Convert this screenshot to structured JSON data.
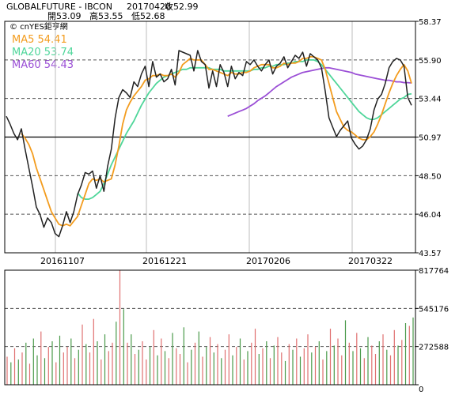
{
  "header": {
    "symbol": "GLOBALFUTURE - IBCON",
    "date": "20170420",
    "close_label": "收52.99",
    "open_label": "開53.09",
    "high_label": "高53.55",
    "low_label": "低52.68"
  },
  "watermark": "cnYES鉅亨網",
  "legend": {
    "ma5": "MA5 54.41",
    "ma20": "MA20 53.74",
    "ma60": "MA60 54.43"
  },
  "colors": {
    "price": "#222222",
    "ma5": "#f39c1e",
    "ma20": "#4fd69a",
    "ma60": "#9b4fd6",
    "vol_up": "#e07070",
    "vol_down": "#4a9a4a",
    "grid": "#888888"
  },
  "chart_data": [
    {
      "type": "line",
      "title": "",
      "x_ticks": [
        "20161107",
        "20161221",
        "20170206",
        "20170322"
      ],
      "y_ticks": [
        58.37,
        55.9,
        53.44,
        50.97,
        48.5,
        46.04,
        43.57
      ],
      "ylim": [
        43.57,
        58.37
      ],
      "grid": true,
      "legend_position": "top-left",
      "series": [
        {
          "name": "price",
          "values": [
            52.3,
            51.8,
            51.2,
            50.8,
            51.5,
            50.2,
            49.0,
            47.8,
            46.5,
            46.0,
            45.2,
            45.8,
            45.5,
            44.8,
            44.6,
            45.3,
            46.2,
            45.5,
            46.2,
            47.3,
            47.9,
            48.7,
            48.6,
            48.8,
            47.7,
            48.5,
            47.5,
            49.1,
            50.2,
            52.2,
            53.5,
            54.0,
            53.8,
            53.5,
            54.5,
            54.2,
            55.0,
            55.5,
            54.2,
            55.8,
            54.8,
            55.0,
            54.5,
            54.7,
            55.3,
            54.3,
            56.5,
            56.4,
            56.3,
            56.2,
            55.2,
            56.5,
            55.8,
            55.6,
            54.1,
            55.2,
            54.2,
            55.6,
            55.1,
            54.2,
            55.5,
            54.7,
            55.1,
            54.9,
            55.8,
            55.6,
            55.9,
            55.5,
            55.2,
            55.6,
            55.9,
            55.0,
            55.5,
            55.7,
            56.1,
            55.4,
            55.8,
            56.2,
            56.0,
            56.4,
            55.5,
            56.3,
            56.1,
            55.9,
            55.4,
            53.9,
            52.2,
            51.6,
            51.0,
            51.4,
            51.7,
            52.0,
            50.9,
            50.5,
            50.2,
            50.4,
            50.8,
            51.5,
            52.7,
            53.4,
            53.7,
            54.4,
            55.4,
            55.8,
            56.0,
            55.9,
            55.5,
            53.5,
            53.0
          ],
          "color": "#222222"
        },
        {
          "name": "MA5",
          "values": [
            null,
            null,
            null,
            null,
            51.2,
            50.9,
            50.5,
            49.9,
            49.0,
            48.3,
            47.6,
            46.9,
            46.2,
            45.8,
            45.4,
            45.3,
            45.4,
            45.3,
            45.6,
            45.9,
            46.6,
            47.3,
            48.0,
            48.3,
            48.2,
            48.3,
            48.1,
            48.2,
            48.3,
            49.2,
            50.4,
            51.8,
            52.7,
            53.2,
            53.6,
            53.9,
            54.2,
            54.6,
            54.7,
            54.9,
            54.9,
            55.0,
            54.9,
            54.9,
            55.0,
            54.8,
            55.1,
            55.6,
            55.8,
            56.0,
            55.9,
            55.9,
            55.9,
            55.6,
            55.3,
            55.3,
            55.2,
            55.1,
            55.0,
            54.9,
            55.1,
            55.0,
            55.0,
            55.1,
            55.1,
            55.2,
            55.4,
            55.5,
            55.6,
            55.6,
            55.6,
            55.4,
            55.4,
            55.5,
            55.7,
            55.6,
            55.7,
            55.7,
            55.8,
            56.0,
            56.0,
            56.1,
            56.1,
            56.0,
            55.9,
            55.3,
            54.4,
            53.5,
            52.6,
            52.1,
            51.6,
            51.4,
            51.3,
            51.1,
            50.9,
            50.8,
            50.8,
            51.0,
            51.3,
            51.8,
            52.4,
            53.1,
            53.8,
            54.4,
            54.9,
            55.3,
            55.6,
            55.2,
            54.4
          ],
          "color": "#f39c1e"
        },
        {
          "name": "MA20",
          "values": [
            null,
            null,
            null,
            null,
            null,
            null,
            null,
            null,
            null,
            null,
            null,
            null,
            null,
            null,
            null,
            null,
            null,
            null,
            null,
            47.4,
            47.1,
            47.0,
            47.0,
            47.1,
            47.3,
            47.5,
            48.0,
            48.6,
            49.2,
            49.7,
            50.2,
            50.7,
            51.2,
            51.6,
            52.0,
            52.5,
            53.0,
            53.4,
            53.8,
            54.1,
            54.4,
            54.6,
            54.8,
            54.9,
            55.0,
            55.1,
            55.2,
            55.3,
            55.3,
            55.4,
            55.4,
            55.4,
            55.4,
            55.4,
            55.4,
            55.3,
            55.3,
            55.3,
            55.2,
            55.2,
            55.2,
            55.2,
            55.2,
            55.2,
            55.2,
            55.2,
            55.3,
            55.3,
            55.4,
            55.4,
            55.5,
            55.5,
            55.6,
            55.6,
            55.6,
            55.7,
            55.7,
            55.8,
            55.8,
            55.8,
            55.9,
            55.9,
            55.9,
            55.8,
            55.6,
            55.3,
            55.0,
            54.7,
            54.4,
            54.1,
            53.8,
            53.5,
            53.2,
            52.9,
            52.6,
            52.4,
            52.2,
            52.1,
            52.1,
            52.2,
            52.4,
            52.6,
            52.8,
            53.0,
            53.2,
            53.4,
            53.5,
            53.7,
            53.74
          ],
          "color": "#4fd69a"
        },
        {
          "name": "MA60",
          "values": [
            null,
            null,
            null,
            null,
            null,
            null,
            null,
            null,
            null,
            null,
            null,
            null,
            null,
            null,
            null,
            null,
            null,
            null,
            null,
            null,
            null,
            null,
            null,
            null,
            null,
            null,
            null,
            null,
            null,
            null,
            null,
            null,
            null,
            null,
            null,
            null,
            null,
            null,
            null,
            null,
            null,
            null,
            null,
            null,
            null,
            null,
            null,
            null,
            null,
            null,
            null,
            null,
            null,
            null,
            null,
            null,
            null,
            null,
            null,
            52.3,
            52.4,
            52.5,
            52.6,
            52.7,
            52.8,
            52.95,
            53.1,
            53.3,
            53.45,
            53.6,
            53.8,
            54.0,
            54.2,
            54.35,
            54.5,
            54.65,
            54.8,
            54.9,
            55.0,
            55.1,
            55.15,
            55.2,
            55.25,
            55.3,
            55.35,
            55.4,
            55.4,
            55.35,
            55.3,
            55.25,
            55.2,
            55.15,
            55.1,
            55.0,
            54.95,
            54.9,
            54.85,
            54.8,
            54.75,
            54.7,
            54.65,
            54.6,
            54.6,
            54.55,
            54.5,
            54.5,
            54.45,
            54.45,
            54.43
          ],
          "color": "#9b4fd6"
        }
      ]
    },
    {
      "type": "bar",
      "title": "",
      "y_ticks": [
        817764,
        545176,
        272588,
        0
      ],
      "ylim": [
        0,
        817764
      ],
      "grid": true,
      "series": [
        {
          "name": "volume",
          "values": [
            200000,
            160000,
            260000,
            180000,
            230000,
            300000,
            150000,
            330000,
            210000,
            380000,
            190000,
            270000,
            310000,
            160000,
            350000,
            230000,
            270000,
            330000,
            190000,
            250000,
            430000,
            290000,
            230000,
            470000,
            310000,
            180000,
            360000,
            240000,
            300000,
            450000,
            815000,
            540000,
            300000,
            360000,
            220000,
            250000,
            310000,
            180000,
            270000,
            390000,
            210000,
            330000,
            240000,
            190000,
            370000,
            260000,
            220000,
            410000,
            160000,
            250000,
            300000,
            380000,
            200000,
            270000,
            340000,
            230000,
            290000,
            190000,
            250000,
            360000,
            210000,
            270000,
            330000,
            180000,
            240000,
            300000,
            400000,
            220000,
            260000,
            310000,
            190000,
            280000,
            340000,
            230000,
            170000,
            290000,
            250000,
            330000,
            200000,
            260000,
            360000,
            230000,
            270000,
            310000,
            180000,
            240000,
            400000,
            280000,
            330000,
            210000,
            460000,
            300000,
            240000,
            370000,
            260000,
            190000,
            340000,
            280000,
            220000,
            310000,
            360000,
            250000,
            210000,
            390000,
            280000,
            320000,
            440000,
            420000,
            480000
          ],
          "up": [
            true,
            false,
            true,
            false,
            true,
            false,
            true,
            false,
            false,
            true,
            false,
            true,
            false,
            true,
            false,
            true,
            true,
            false,
            true,
            false,
            true,
            false,
            true,
            true,
            false,
            true,
            false,
            true,
            true,
            false,
            true,
            false,
            true,
            false,
            true,
            false,
            true,
            true,
            false,
            true,
            false,
            true,
            false,
            true,
            false,
            true,
            true,
            false,
            true,
            false,
            true,
            false,
            true,
            false,
            true,
            false,
            true,
            false,
            true,
            true,
            false,
            true,
            false,
            true,
            false,
            true,
            true,
            false,
            true,
            false,
            true,
            false,
            true,
            true,
            false,
            true,
            false,
            true,
            false,
            true,
            true,
            false,
            true,
            false,
            true,
            false,
            true,
            false,
            true,
            true,
            false,
            true,
            false,
            true,
            false,
            true,
            false,
            true,
            true,
            false,
            true,
            false,
            true,
            true,
            false,
            true,
            false,
            true,
            false
          ]
        }
      ]
    }
  ]
}
